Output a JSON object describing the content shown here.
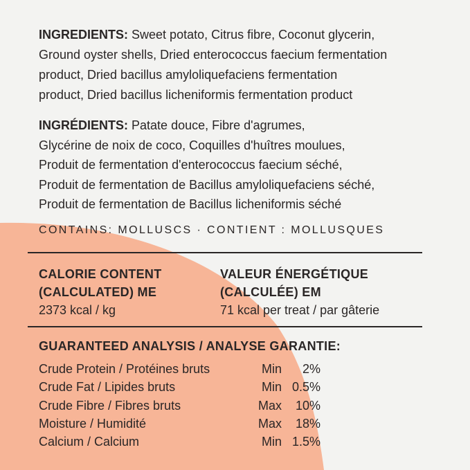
{
  "colors": {
    "background": "#f3f3f1",
    "accent_shape": "#f7b597",
    "text": "#2a2626"
  },
  "ingredients_en": {
    "label": "INGREDIENTS:",
    "lines": [
      "Sweet potato, Citrus fibre, Coconut glycerin,",
      "Ground oyster shells, Dried enterococcus faecium fermentation",
      "product, Dried bacillus amyloliquefaciens fermentation",
      "product, Dried bacillus licheniformis fermentation product"
    ]
  },
  "ingredients_fr": {
    "label": "INGRÉDIENTS:",
    "lines": [
      "Patate douce, Fibre d'agrumes,",
      "Glycérine de noix de coco, Coquilles d'huîtres moulues,",
      "Produit de fermentation d'enterococcus faecium séché,",
      "Produit de fermentation de Bacillus amyloliquefaciens séché,",
      "Produit de fermentation de Bacillus licheniformis séché"
    ]
  },
  "contains": "CONTAINS: MOLLUSCS · CONTIENT : MOLLUSQUES",
  "calorie": {
    "en_title_1": "CALORIE CONTENT",
    "en_title_2": "(CALCULATED) ME",
    "en_value": "2373 kcal / kg",
    "fr_title_1": "VALEUR ÉNERGÉTIQUE",
    "fr_title_2": "(CALCULÉE) EM",
    "fr_value": "71 kcal per treat / par gâterie"
  },
  "analysis": {
    "title": "GUARANTEED ANALYSIS / ANALYSE GARANTIE:",
    "rows": [
      {
        "name": "Crude Protein / Protéines bruts",
        "qualifier": "Min",
        "value": "2%"
      },
      {
        "name": "Crude Fat / Lipides bruts",
        "qualifier": "Min",
        "value": "0.5%"
      },
      {
        "name": "Crude Fibre / Fibres bruts",
        "qualifier": "Max",
        "value": "10%"
      },
      {
        "name": "Moisture / Humidité",
        "qualifier": "Max",
        "value": "18%"
      },
      {
        "name": "Calcium / Calcium",
        "qualifier": "Min",
        "value": "1.5%"
      }
    ]
  }
}
